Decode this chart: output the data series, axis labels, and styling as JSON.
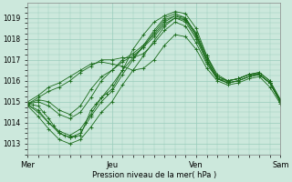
{
  "bg_color": "#cce8dc",
  "grid_color": "#99ccbb",
  "line_color": "#1a6b1a",
  "marker_color": "#1a6b1a",
  "xlabel": "Pression niveau de la mer( hPa )",
  "xtick_labels": [
    "Mer",
    "Jeu",
    "Ven",
    "Sam"
  ],
  "xtick_positions": [
    0,
    48,
    96,
    144
  ],
  "ylim": [
    1012.5,
    1019.7
  ],
  "yticks": [
    1013,
    1014,
    1015,
    1016,
    1017,
    1018,
    1019
  ],
  "total_hours": 144,
  "series": [
    [
      0,
      1014.9,
      3,
      1014.85,
      6,
      1014.8,
      9,
      1014.5,
      12,
      1014.2,
      15,
      1013.85,
      18,
      1013.5,
      21,
      1013.4,
      24,
      1013.3,
      27,
      1013.35,
      30,
      1013.4,
      33,
      1014.0,
      36,
      1014.6,
      39,
      1014.9,
      42,
      1015.2,
      45,
      1015.4,
      48,
      1015.6,
      54,
      1016.5,
      60,
      1017.5,
      66,
      1018.2,
      72,
      1018.8,
      78,
      1019.1,
      84,
      1019.3,
      90,
      1019.2,
      96,
      1018.5,
      102,
      1017.2,
      108,
      1016.3,
      114,
      1016.0,
      120,
      1016.1,
      126,
      1016.3,
      132,
      1016.4,
      138,
      1016.0,
      144,
      1015.1
    ],
    [
      0,
      1014.9,
      6,
      1015.1,
      12,
      1015.0,
      18,
      1014.6,
      24,
      1014.4,
      30,
      1014.8,
      36,
      1015.6,
      42,
      1016.2,
      48,
      1016.5,
      54,
      1016.9,
      60,
      1017.2,
      66,
      1017.6,
      72,
      1018.1,
      78,
      1018.7,
      84,
      1019.0,
      90,
      1018.9,
      96,
      1018.3,
      102,
      1017.2,
      108,
      1016.2,
      114,
      1016.0,
      120,
      1016.1,
      126,
      1016.3,
      132,
      1016.4,
      138,
      1016.0,
      144,
      1015.1
    ],
    [
      0,
      1014.85,
      6,
      1014.6,
      12,
      1014.0,
      18,
      1013.5,
      24,
      1013.3,
      30,
      1013.5,
      36,
      1014.3,
      42,
      1015.0,
      48,
      1015.5,
      54,
      1016.3,
      60,
      1017.0,
      66,
      1017.7,
      72,
      1018.4,
      78,
      1019.0,
      84,
      1019.2,
      90,
      1019.0,
      96,
      1018.2,
      102,
      1017.0,
      108,
      1016.1,
      114,
      1015.9,
      120,
      1016.0,
      126,
      1016.2,
      132,
      1016.3,
      138,
      1015.9,
      144,
      1015.0
    ],
    [
      0,
      1014.9,
      6,
      1015.2,
      12,
      1015.5,
      18,
      1015.7,
      24,
      1016.0,
      30,
      1016.4,
      36,
      1016.7,
      42,
      1017.0,
      48,
      1017.0,
      54,
      1017.1,
      60,
      1017.1,
      66,
      1017.3,
      72,
      1017.8,
      78,
      1018.4,
      84,
      1018.8,
      90,
      1018.6,
      96,
      1017.8,
      102,
      1016.8,
      108,
      1016.1,
      114,
      1016.0,
      120,
      1016.1,
      126,
      1016.3,
      132,
      1016.3,
      138,
      1015.9,
      144,
      1015.0
    ],
    [
      0,
      1014.8,
      6,
      1014.3,
      12,
      1013.7,
      18,
      1013.2,
      24,
      1013.0,
      30,
      1013.2,
      36,
      1013.8,
      42,
      1014.5,
      48,
      1015.0,
      54,
      1015.8,
      60,
      1016.5,
      66,
      1017.2,
      72,
      1017.9,
      78,
      1018.6,
      84,
      1019.0,
      90,
      1018.8,
      96,
      1018.0,
      102,
      1016.9,
      108,
      1016.1,
      114,
      1015.9,
      120,
      1016.0,
      126,
      1016.2,
      132,
      1016.3,
      138,
      1015.9,
      144,
      1015.0
    ],
    [
      0,
      1014.9,
      6,
      1015.0,
      12,
      1014.8,
      18,
      1014.4,
      24,
      1014.2,
      30,
      1014.5,
      36,
      1015.2,
      42,
      1016.0,
      48,
      1016.5,
      54,
      1017.0,
      60,
      1017.3,
      66,
      1017.7,
      72,
      1018.2,
      78,
      1018.8,
      84,
      1019.1,
      90,
      1019.0,
      96,
      1018.2,
      102,
      1017.1,
      108,
      1016.2,
      114,
      1016.0,
      120,
      1016.1,
      126,
      1016.3,
      132,
      1016.3,
      138,
      1015.9,
      144,
      1015.0
    ],
    [
      0,
      1015.0,
      6,
      1015.3,
      12,
      1015.7,
      18,
      1015.9,
      24,
      1016.2,
      30,
      1016.5,
      36,
      1016.8,
      42,
      1016.9,
      48,
      1016.8,
      54,
      1016.7,
      60,
      1016.5,
      66,
      1016.6,
      72,
      1017.0,
      78,
      1017.7,
      84,
      1018.2,
      90,
      1018.1,
      96,
      1017.5,
      102,
      1016.6,
      108,
      1016.0,
      114,
      1015.8,
      120,
      1015.9,
      126,
      1016.1,
      132,
      1016.2,
      138,
      1015.7,
      144,
      1014.9
    ],
    [
      0,
      1014.85,
      6,
      1014.5,
      12,
      1014.0,
      18,
      1013.6,
      24,
      1013.4,
      30,
      1013.7,
      36,
      1014.4,
      42,
      1015.2,
      48,
      1015.8,
      54,
      1016.5,
      60,
      1017.1,
      66,
      1017.6,
      72,
      1018.3,
      78,
      1018.9,
      84,
      1019.1,
      90,
      1018.9,
      96,
      1018.1,
      102,
      1017.0,
      108,
      1016.1,
      114,
      1015.9,
      120,
      1016.0,
      126,
      1016.2,
      132,
      1016.3,
      138,
      1015.9,
      144,
      1015.0
    ]
  ]
}
